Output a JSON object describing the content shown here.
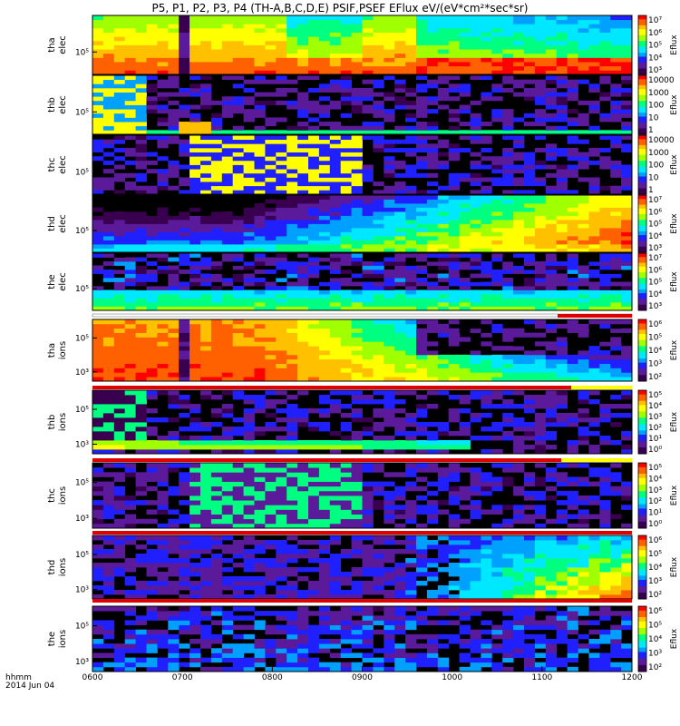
{
  "title": "P5, P1, P2, P3, P4 (TH-A,B,C,D,E) PSIF,PSEF EFlux eV/(eV*cm²*sec*sr)",
  "chart_data": {
    "type": "heatmap",
    "x_tick_labels": [
      "0600",
      "0700",
      "0800",
      "0900",
      "1000",
      "1100",
      "1200"
    ],
    "x_corner_labels": [
      "hhmm",
      "2014 Jun 04"
    ],
    "xlim": [
      "0600",
      "1200"
    ],
    "colorbar_label": "Eflux",
    "colormap": [
      "#000000",
      "#3a0050",
      "#5a1a9a",
      "#2020ff",
      "#00a0ff",
      "#00e8ff",
      "#00ff80",
      "#a0ff00",
      "#ffff00",
      "#ffc000",
      "#ff6000",
      "#ff0000"
    ],
    "panels": [
      {
        "ylabel_line1": "tha",
        "ylabel_line2": "elec",
        "ytick": "10⁵",
        "cbar_ticks": [
          "10⁷",
          "10⁶",
          "10⁵",
          "10⁴",
          "10³"
        ],
        "bar_flag": "none"
      },
      {
        "ylabel_line1": "thb",
        "ylabel_line2": "elec",
        "ytick": "10⁵",
        "cbar_ticks": [
          "10000",
          "1000",
          "100",
          "10",
          "1"
        ],
        "bar_flag": "none"
      },
      {
        "ylabel_line1": "thc",
        "ylabel_line2": "elec",
        "ytick": "10⁵",
        "cbar_ticks": [
          "10000",
          "1000",
          "100",
          "10",
          "1"
        ],
        "bar_flag": "none"
      },
      {
        "ylabel_line1": "thd",
        "ylabel_line2": "elec",
        "ytick": "10⁵",
        "cbar_ticks": [
          "10⁷",
          "10⁶",
          "10⁵",
          "10⁴",
          "10³"
        ],
        "bar_flag": "none"
      },
      {
        "ylabel_line1": "the",
        "ylabel_line2": "elec",
        "ytick": "10⁵",
        "cbar_ticks": [
          "10⁷",
          "10⁶",
          "10⁵",
          "10⁴",
          "10³"
        ],
        "bar_flag": "red_end"
      },
      {
        "ylabel_line1": "tha",
        "ylabel_line2": "ions",
        "ytick_hi": "10⁵",
        "ytick_lo": "10³",
        "cbar_ticks": [
          "10⁶",
          "10⁵",
          "10⁴",
          "10³",
          "10²"
        ],
        "bar_flag": "red"
      },
      {
        "ylabel_line1": "thb",
        "ylabel_line2": "ions",
        "ytick_hi": "10⁵",
        "ytick_lo": "10³",
        "cbar_ticks": [
          "10⁵",
          "10⁴",
          "10³",
          "10²",
          "10¹",
          "10⁰"
        ],
        "bar_flag": "red_yellow"
      },
      {
        "ylabel_line1": "thc",
        "ylabel_line2": "ions",
        "ytick_hi": "10⁵",
        "ytick_lo": "10³",
        "cbar_ticks": [
          "10⁵",
          "10⁴",
          "10³",
          "10²",
          "10¹",
          "10⁰"
        ],
        "bar_flag": "red"
      },
      {
        "ylabel_line1": "thd",
        "ylabel_line2": "ions",
        "ytick_hi": "10⁵",
        "ytick_lo": "10³",
        "cbar_ticks": [
          "10⁶",
          "10⁵",
          "10⁴",
          "10³",
          "10²"
        ],
        "bar_flag": "red"
      },
      {
        "ylabel_line1": "the",
        "ylabel_line2": "ions",
        "ytick_hi": "10⁵",
        "ytick_lo": "10³",
        "cbar_ticks": [
          "10⁶",
          "10⁵",
          "10⁴",
          "10³",
          "10²"
        ],
        "bar_flag": "none"
      }
    ]
  }
}
